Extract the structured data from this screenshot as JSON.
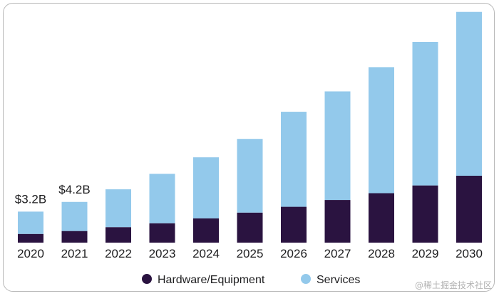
{
  "chart_data": {
    "type": "bar",
    "stacked": true,
    "categories": [
      "2020",
      "2021",
      "2022",
      "2023",
      "2024",
      "2025",
      "2026",
      "2027",
      "2028",
      "2029",
      "2030"
    ],
    "series": [
      {
        "name": "Hardware/Equipment",
        "color": "#2a1340",
        "values": [
          0.9,
          1.2,
          1.6,
          2.0,
          2.5,
          3.1,
          3.7,
          4.4,
          5.1,
          5.9,
          6.9
        ]
      },
      {
        "name": "Services",
        "color": "#93c9eb",
        "values": [
          2.3,
          3.0,
          3.9,
          5.1,
          6.3,
          7.6,
          9.8,
          11.2,
          13.0,
          14.8,
          16.9
        ]
      }
    ],
    "data_labels": [
      {
        "category": "2020",
        "text": "$3.2B"
      },
      {
        "category": "2021",
        "text": "$4.2B"
      }
    ],
    "ylim": [
      0,
      24
    ],
    "grid": false,
    "legend": "bottom-center",
    "title": "",
    "xlabel": "",
    "ylabel": ""
  },
  "watermark": "@稀土掘金技术社区"
}
